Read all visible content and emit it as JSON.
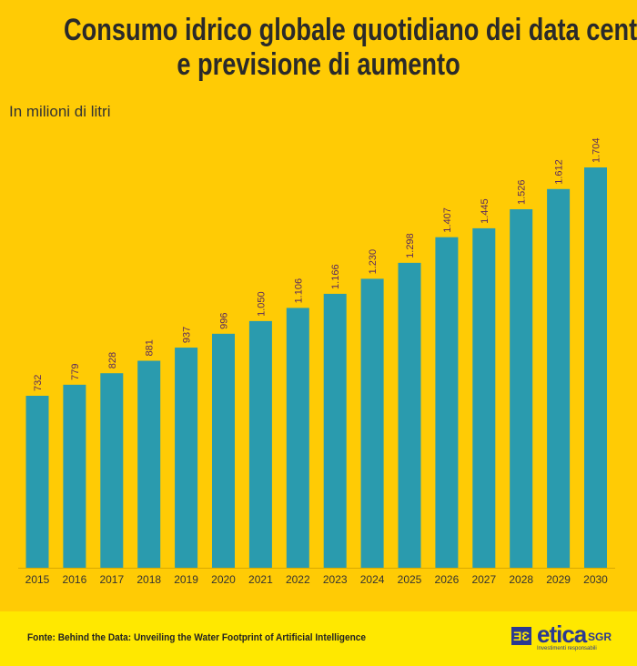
{
  "title_line1": "Consumo idrico globale quotidiano dei data center",
  "title_line2": "e previsione di aumento",
  "subtitle": "In milioni di litri",
  "source": "Fonte: Behind the Data: Unveiling the Water Footprint of Artificial Intelligence",
  "logo": {
    "word": "etica",
    "suffix": "SGR",
    "tagline": "Investimenti responsabili"
  },
  "colors": {
    "background": "#FFCB05",
    "bar": "#2A9BAE",
    "label": "#5B2A5E",
    "footer": "#FFE800",
    "brand": "#2B3990"
  },
  "chart_data": {
    "type": "bar",
    "title": "Consumo idrico globale quotidiano dei data center e previsione di aumento",
    "ylabel": "In milioni di litri",
    "categories": [
      "2015",
      "2016",
      "2017",
      "2018",
      "2019",
      "2020",
      "2021",
      "2022",
      "2023",
      "2024",
      "2025",
      "2026",
      "2027",
      "2028",
      "2029",
      "2030"
    ],
    "values": [
      732,
      779,
      828,
      881,
      937,
      996,
      1050,
      1106,
      1166,
      1230,
      1298,
      1407,
      1445,
      1526,
      1612,
      1704
    ],
    "data_labels": [
      "732",
      "779",
      "828",
      "881",
      "937",
      "996",
      "1.050",
      "1.106",
      "1.166",
      "1.230",
      "1.298",
      "1.407",
      "1.445",
      "1.526",
      "1.612",
      "1.704"
    ],
    "ylim": [
      0,
      1800
    ],
    "grid": false,
    "legend": "none"
  }
}
